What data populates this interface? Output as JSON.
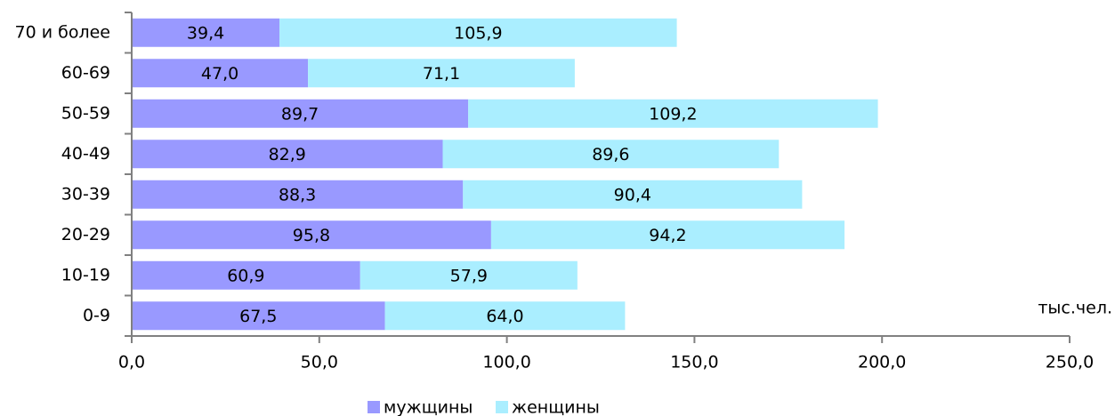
{
  "chart_data": {
    "type": "stacked_barh",
    "categories": [
      "70 и более",
      "60-69",
      "50-59",
      "40-49",
      "30-39",
      "20-29",
      "10-19",
      "0-9"
    ],
    "series": [
      {
        "name": "мужщины",
        "color": "#9999ff",
        "values": [
          39.4,
          47.0,
          89.7,
          82.9,
          88.3,
          95.8,
          60.9,
          67.5
        ],
        "value_labels": [
          "39,4",
          "47,0",
          "89,7",
          "82,9",
          "88,3",
          "95,8",
          "60,9",
          "67,5"
        ]
      },
      {
        "name": "женщины",
        "color": "#aaeeff",
        "values": [
          105.9,
          71.1,
          109.2,
          89.6,
          90.4,
          94.2,
          57.9,
          64.0
        ],
        "value_labels": [
          "105,9",
          "71,1",
          "109,2",
          "89,6",
          "90,4",
          "94,2",
          "57,9",
          "64,0"
        ]
      }
    ],
    "xlabel": "тыс.чел.",
    "xlim": [
      0,
      250
    ],
    "xticks": [
      {
        "value": 0,
        "label": "0,0"
      },
      {
        "value": 50,
        "label": "50,0"
      },
      {
        "value": 100,
        "label": "100,0"
      },
      {
        "value": 150,
        "label": "150,0"
      },
      {
        "value": 200,
        "label": "200,0"
      },
      {
        "value": 250,
        "label": "250,0"
      }
    ],
    "legend": "bottom"
  }
}
